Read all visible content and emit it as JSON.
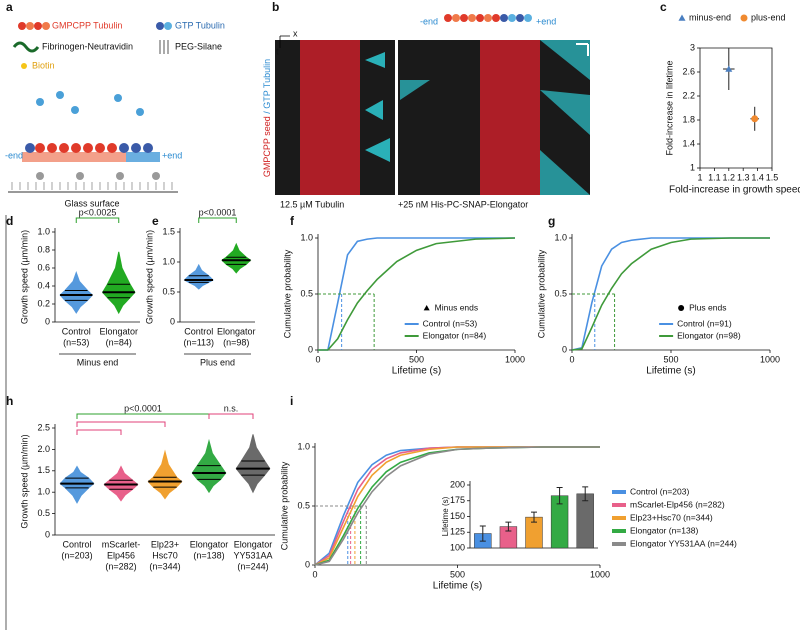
{
  "schematic": {
    "label": "a",
    "legend": [
      "GMPCPP Tubulin",
      "GTP Tubulin",
      "Fibrinogen-Neutravidin",
      "PEG-Silane",
      "Biotin"
    ],
    "minus_end": "-end",
    "plus_end": "+end",
    "surface": "Glass surface"
  },
  "kymograph": {
    "label": "b",
    "axis_x": "x",
    "axis_t": "t",
    "minus_end": "-end",
    "plus_end": "+end",
    "y_label": [
      "GMPCPP seed",
      "/ GTP Tubulin"
    ],
    "left_caption": "12.5 µM Tubulin",
    "right_caption": "+25 nM His-PC-SNAP-Elongator"
  },
  "chart_data": [
    {
      "type": "scatter",
      "label": "c",
      "xlabel": "Fold-increase in growth speed",
      "ylabel": "Fold-increase in lifetime",
      "xlim": [
        1,
        1.5
      ],
      "xticks": [
        1,
        1.1,
        1.2,
        1.3,
        1.4,
        1.5
      ],
      "ylim": [
        1,
        3
      ],
      "yticks": [
        1,
        1.4,
        1.8,
        2.2,
        2.6,
        3
      ],
      "series": [
        {
          "name": "minus-end",
          "color": "#4a7fc1",
          "marker": "triangle",
          "x": [
            1.2
          ],
          "values": [
            2.65
          ],
          "xerr": [
            0.04
          ],
          "yerr": [
            0.35
          ]
        },
        {
          "name": "plus-end",
          "color": "#f08a30",
          "marker": "circle",
          "x": [
            1.38
          ],
          "values": [
            1.82
          ],
          "xerr": [
            0.03
          ],
          "yerr": [
            0.2
          ]
        }
      ]
    },
    {
      "type": "violin",
      "label": "d",
      "ylabel": "Growth speed (µm/min)",
      "xlabel": "Minus end",
      "ylim": [
        0,
        1
      ],
      "yticks": [
        0,
        0.2,
        0.4,
        0.6,
        0.8,
        {
          "value": 1,
          "label": "1.0"
        }
      ],
      "categories": [
        [
          "Control",
          "(n=53)"
        ],
        [
          "Elongator",
          "(n=84)"
        ]
      ],
      "groups": [
        {
          "color": "#5599dd",
          "min": 0.1,
          "q1": 0.24,
          "median": 0.3,
          "q3": 0.35,
          "max": 0.55
        },
        {
          "color": "#22aa22",
          "min": 0.1,
          "q1": 0.27,
          "median": 0.33,
          "q3": 0.42,
          "max": 0.78
        }
      ],
      "significance": [
        {
          "text": "p<0.0025",
          "from": 0,
          "to": 1,
          "color": "#2ca02c"
        }
      ]
    },
    {
      "type": "violin",
      "label": "e",
      "ylabel": "Growth speed (µm/min)",
      "xlabel": "Plus end",
      "ylim": [
        0,
        1.5
      ],
      "yticks": [
        0,
        0.5,
        {
          "value": 1,
          "label": "1.0"
        },
        1.5
      ],
      "categories": [
        [
          "Control",
          "(n=113)"
        ],
        [
          "Elongator",
          "(n=98)"
        ]
      ],
      "groups": [
        {
          "color": "#5599dd",
          "min": 0.55,
          "q1": 0.66,
          "median": 0.7,
          "q3": 0.77,
          "max": 0.95
        },
        {
          "color": "#22aa22",
          "min": 0.82,
          "q1": 0.96,
          "median": 1.03,
          "q3": 1.08,
          "max": 1.3
        }
      ],
      "significance": [
        {
          "text": "p<0.0001",
          "from": 0,
          "to": 1,
          "color": "#2ca02c"
        }
      ]
    },
    {
      "type": "line",
      "label": "f",
      "xlabel": "Lifetime (s)",
      "ylabel": "Cumulative probability",
      "xlim": [
        0,
        1000
      ],
      "xticks": [
        0,
        500,
        1000
      ],
      "ylim": [
        0,
        1
      ],
      "yticks": [
        0,
        0.5,
        {
          "value": 1,
          "label": "1.0"
        }
      ],
      "legend_title": "Minus ends",
      "legend_marker": "triangle",
      "reference_y": 0.5,
      "x": [
        0,
        50,
        100,
        150,
        200,
        250,
        300,
        400,
        500,
        600,
        800,
        1000
      ],
      "series": [
        {
          "name": "Control (n=53)",
          "color": "#4a90e2",
          "median": 120,
          "values": [
            0,
            0,
            0.42,
            0.85,
            0.97,
            0.99,
            1,
            1,
            1,
            1,
            1,
            1
          ]
        },
        {
          "name": "Elongator (n=84)",
          "color": "#3f9a3a",
          "median": 285,
          "values": [
            0,
            0,
            0.1,
            0.27,
            0.42,
            0.53,
            0.63,
            0.79,
            0.89,
            0.95,
            0.99,
            1
          ]
        }
      ]
    },
    {
      "type": "line",
      "label": "g",
      "xlabel": "Lifetime (s)",
      "ylabel": "Cumulative probability",
      "xlim": [
        0,
        1000
      ],
      "xticks": [
        0,
        500,
        1000
      ],
      "ylim": [
        0,
        1
      ],
      "yticks": [
        0,
        0.5,
        {
          "value": 1,
          "label": "1.0"
        }
      ],
      "legend_title": "Plus ends",
      "legend_marker": "circle",
      "reference_y": 0.5,
      "x": [
        0,
        50,
        100,
        150,
        200,
        250,
        300,
        400,
        500,
        600,
        800,
        1000
      ],
      "series": [
        {
          "name": "Control (n=91)",
          "color": "#4a90e2",
          "median": 115,
          "values": [
            0,
            0.02,
            0.42,
            0.75,
            0.9,
            0.96,
            0.98,
            1,
            1,
            1,
            1,
            1
          ]
        },
        {
          "name": "Elongator (n=98)",
          "color": "#3f9a3a",
          "median": 215,
          "values": [
            0,
            0.01,
            0.2,
            0.4,
            0.55,
            0.68,
            0.77,
            0.9,
            0.96,
            0.99,
            1,
            1
          ]
        }
      ]
    },
    {
      "type": "violin",
      "label": "h",
      "ylabel": "Growth speed (µm/min)",
      "ylim": [
        0,
        2.5
      ],
      "yticks": [
        0,
        0.5,
        {
          "value": 1,
          "label": "1.0"
        },
        1.5,
        {
          "value": 2,
          "label": "2.0"
        },
        2.5
      ],
      "categories": [
        [
          "Control",
          "(n=203)"
        ],
        [
          "mScarlet-",
          "Elp456",
          "(n=282)"
        ],
        [
          "Elp23+",
          "Hsc70",
          "(n=344)"
        ],
        [
          "Elongator",
          "(n=138)"
        ],
        [
          "Elongator",
          "YY531AA",
          "(n=244)"
        ]
      ],
      "groups": [
        {
          "color": "#5599dd",
          "min": 0.75,
          "q1": 1.1,
          "median": 1.2,
          "q3": 1.33,
          "max": 1.6
        },
        {
          "color": "#e8608a",
          "min": 0.8,
          "q1": 1.07,
          "median": 1.18,
          "q3": 1.28,
          "max": 1.6
        },
        {
          "color": "#f0a030",
          "min": 0.85,
          "q1": 1.12,
          "median": 1.25,
          "q3": 1.35,
          "max": 1.95
        },
        {
          "color": "#33aa44",
          "min": 1.0,
          "q1": 1.3,
          "median": 1.45,
          "q3": 1.62,
          "max": 2.2
        },
        {
          "color": "#6a6a6a",
          "min": 1.0,
          "q1": 1.4,
          "median": 1.55,
          "q3": 1.73,
          "max": 2.35
        }
      ],
      "significance": [
        {
          "text": "p<0.0001",
          "from": 0,
          "to": 3,
          "color": "#2ca02c"
        },
        {
          "text": "n.s.",
          "from": 3,
          "to": 4,
          "color": "#e0407a"
        },
        {
          "from": 0,
          "to": 2,
          "color": "#e0407a"
        },
        {
          "from": 0,
          "to": 1,
          "color": "#e0407a"
        }
      ]
    },
    {
      "type": "line",
      "label": "i",
      "xlabel": "Lifetime (s)",
      "ylabel": "Cumulative probability",
      "xlim": [
        0,
        1000
      ],
      "xticks": [
        0,
        500,
        1000
      ],
      "ylim": [
        0,
        1
      ],
      "yticks": [
        0,
        0.5,
        {
          "value": 1,
          "label": "1.0"
        }
      ],
      "reference_y": 0.5,
      "legend_outside": true,
      "x": [
        0,
        50,
        100,
        150,
        200,
        250,
        300,
        400,
        500,
        600,
        800,
        1000
      ],
      "series": [
        {
          "name": "Control (n=203)",
          "color": "#4a90e2",
          "median": 115,
          "values": [
            0,
            0.1,
            0.42,
            0.7,
            0.85,
            0.93,
            0.97,
            0.99,
            1,
            1,
            1,
            1
          ]
        },
        {
          "name": "mScarlet-Elp456 (n=282)",
          "color": "#e8608a",
          "median": 125,
          "values": [
            0,
            0.08,
            0.37,
            0.64,
            0.81,
            0.9,
            0.95,
            0.99,
            1,
            1,
            1,
            1
          ]
        },
        {
          "name": "Elp23+Hsc70 (n=344)",
          "color": "#f0a030",
          "median": 140,
          "values": [
            0,
            0.06,
            0.32,
            0.58,
            0.76,
            0.87,
            0.93,
            0.98,
            1,
            1,
            1,
            1
          ]
        },
        {
          "name": "Elongator (n=138)",
          "color": "#33aa44",
          "median": 160,
          "values": [
            0,
            0.04,
            0.25,
            0.48,
            0.66,
            0.79,
            0.87,
            0.95,
            0.98,
            0.99,
            1,
            1
          ]
        },
        {
          "name": "Elongator YY531AA (n=244)",
          "color": "#8a8a8a",
          "median": 180,
          "values": [
            0,
            0.03,
            0.22,
            0.44,
            0.62,
            0.75,
            0.84,
            0.94,
            0.98,
            0.99,
            1,
            1
          ]
        }
      ]
    },
    {
      "type": "bar",
      "ylabel": "Lifetime (s)",
      "ylim": [
        100,
        200
      ],
      "yticks": [
        100,
        125,
        150,
        175,
        200
      ],
      "values": [
        123,
        134,
        149,
        183,
        186
      ],
      "errors": [
        12,
        7,
        8,
        13,
        11
      ],
      "colors": [
        "#4a90e2",
        "#e8608a",
        "#f0a030",
        "#33aa44",
        "#6a6a6a"
      ]
    }
  ]
}
